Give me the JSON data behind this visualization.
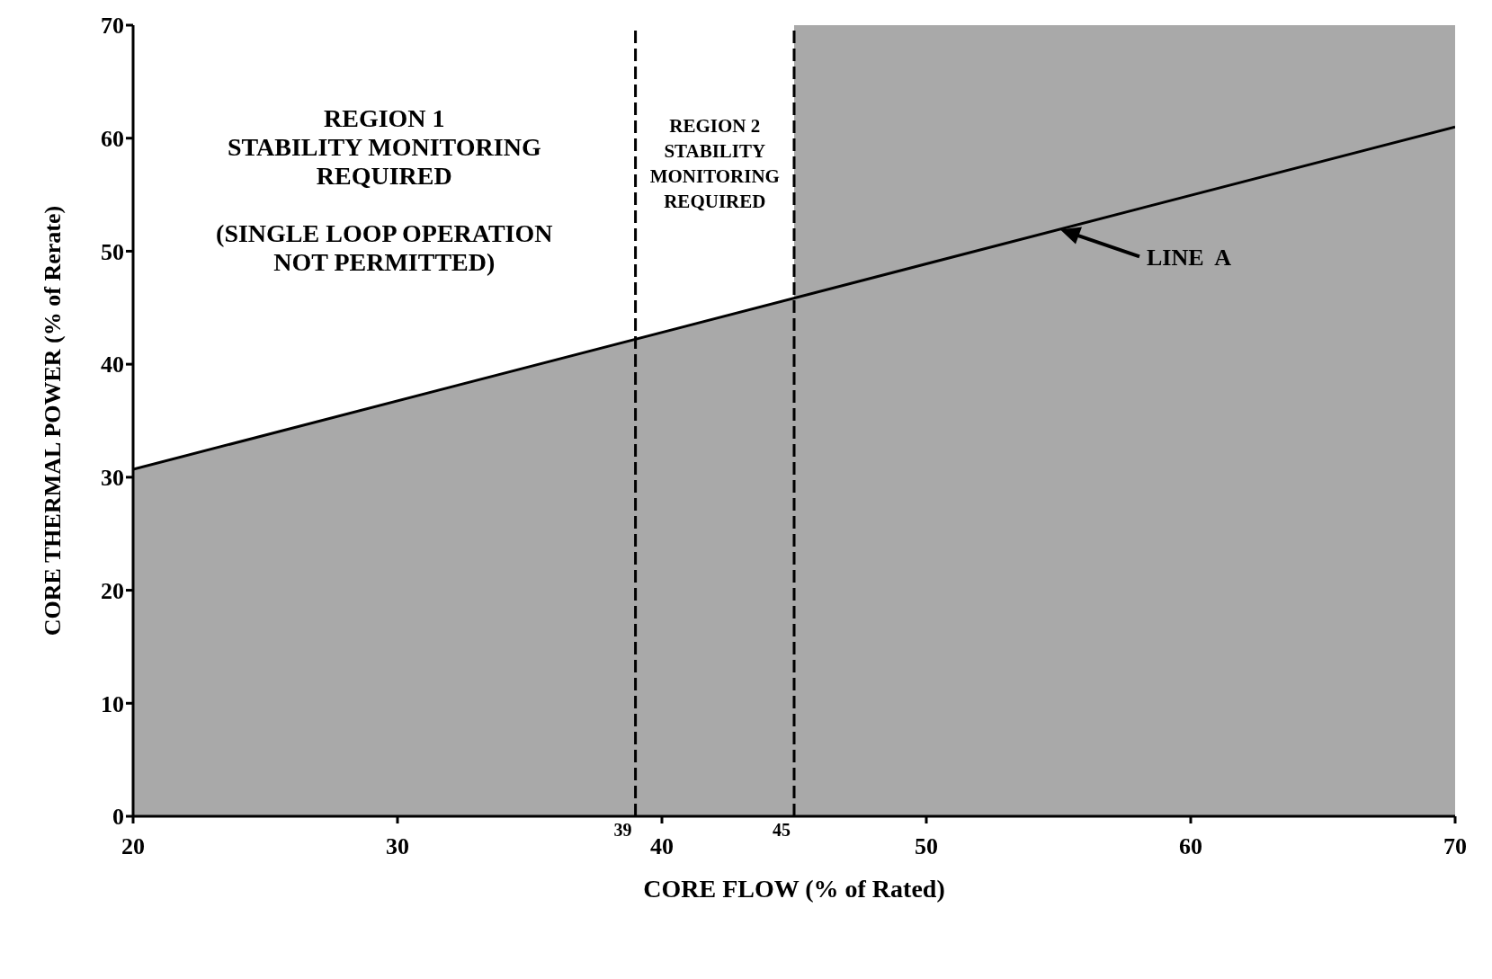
{
  "chart_data": {
    "type": "area",
    "xlabel": "CORE FLOW   (% of Rated)",
    "ylabel": "CORE THERMAL  POWER  (% of Rerate)",
    "x": [
      20,
      70
    ],
    "series": [
      {
        "name": null,
        "color": "#a9a9a9",
        "values": [
          30.7,
          61
        ]
      }
    ],
    "xlim": [
      20,
      70
    ],
    "xticks": [
      20,
      30,
      40,
      50,
      60,
      70
    ],
    "ylim": [
      0,
      70
    ],
    "yticks": [
      0,
      10,
      20,
      30,
      40,
      50,
      60,
      70
    ],
    "bands": [
      {
        "axis": "x",
        "from": 45,
        "to": 70,
        "label": null,
        "color": "#a9a9a9"
      }
    ],
    "ref_lines": [
      {
        "axis": "x",
        "value": 39,
        "label": "39",
        "line_style": "dashed"
      },
      {
        "axis": "x",
        "value": 45,
        "label": "45",
        "line_style": "dashed"
      }
    ],
    "annotations": [
      "REGION 1\nSTABILITY MONITORING\nREQUIRED\n\n(SINGLE LOOP OPERATION\nNOT PERMITTED)",
      "REGION 2\nSTABILITY\nMONITORING\nREQUIRED",
      "LINE  A"
    ],
    "grid": false
  }
}
